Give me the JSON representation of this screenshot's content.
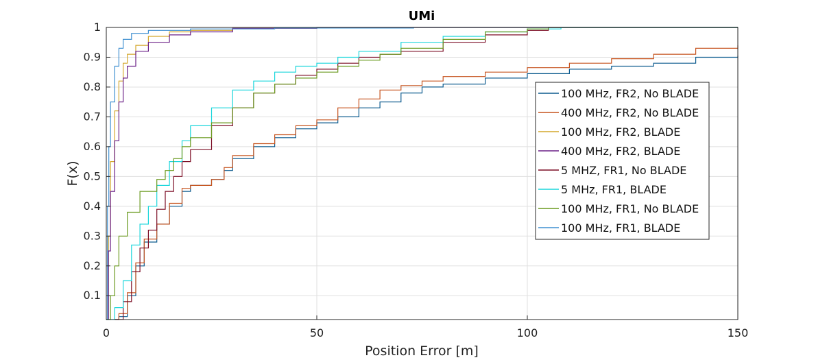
{
  "chart_data": {
    "type": "line",
    "title": "UMi",
    "xlabel": "Position Error [m]",
    "ylabel": "F(x)",
    "xlim": [
      0,
      150
    ],
    "ylim": [
      0.02,
      1
    ],
    "xticks": [
      0,
      50,
      100,
      150
    ],
    "yticks": [
      0.1,
      0.2,
      0.3,
      0.4,
      0.5,
      0.6,
      0.7,
      0.8,
      0.9,
      1
    ],
    "grid": true,
    "legend_position": "right",
    "series": [
      {
        "name": "100 MHz, FR2, No BLADE",
        "color": "#0b5a8e",
        "points": [
          [
            2,
            0.02
          ],
          [
            3,
            0.03
          ],
          [
            5,
            0.1
          ],
          [
            7,
            0.2
          ],
          [
            9,
            0.28
          ],
          [
            12,
            0.34
          ],
          [
            15,
            0.4
          ],
          [
            18,
            0.45
          ],
          [
            20,
            0.47
          ],
          [
            25,
            0.49
          ],
          [
            28,
            0.52
          ],
          [
            30,
            0.56
          ],
          [
            35,
            0.6
          ],
          [
            40,
            0.63
          ],
          [
            45,
            0.66
          ],
          [
            50,
            0.68
          ],
          [
            55,
            0.7
          ],
          [
            60,
            0.73
          ],
          [
            65,
            0.75
          ],
          [
            70,
            0.78
          ],
          [
            75,
            0.8
          ],
          [
            80,
            0.81
          ],
          [
            90,
            0.83
          ],
          [
            100,
            0.845
          ],
          [
            110,
            0.86
          ],
          [
            120,
            0.87
          ],
          [
            130,
            0.88
          ],
          [
            140,
            0.9
          ],
          [
            150,
            0.905
          ]
        ]
      },
      {
        "name": "400 MHz, FR2, No BLADE",
        "color": "#c6531e",
        "points": [
          [
            2,
            0.02
          ],
          [
            3,
            0.04
          ],
          [
            5,
            0.11
          ],
          [
            7,
            0.21
          ],
          [
            9,
            0.29
          ],
          [
            12,
            0.34
          ],
          [
            15,
            0.41
          ],
          [
            18,
            0.46
          ],
          [
            20,
            0.47
          ],
          [
            25,
            0.49
          ],
          [
            28,
            0.53
          ],
          [
            30,
            0.57
          ],
          [
            35,
            0.61
          ],
          [
            40,
            0.64
          ],
          [
            45,
            0.67
          ],
          [
            50,
            0.69
          ],
          [
            55,
            0.73
          ],
          [
            60,
            0.76
          ],
          [
            65,
            0.79
          ],
          [
            70,
            0.805
          ],
          [
            75,
            0.82
          ],
          [
            80,
            0.835
          ],
          [
            90,
            0.85
          ],
          [
            100,
            0.865
          ],
          [
            110,
            0.88
          ],
          [
            120,
            0.895
          ],
          [
            130,
            0.91
          ],
          [
            140,
            0.93
          ],
          [
            150,
            0.94
          ]
        ]
      },
      {
        "name": "100 MHz, FR2, BLADE",
        "color": "#d4a72c",
        "points": [
          [
            0,
            0.02
          ],
          [
            0.5,
            0.3
          ],
          [
            1,
            0.55
          ],
          [
            2,
            0.72
          ],
          [
            3,
            0.82
          ],
          [
            4,
            0.88
          ],
          [
            5,
            0.91
          ],
          [
            7,
            0.94
          ],
          [
            10,
            0.97
          ],
          [
            15,
            0.985
          ],
          [
            20,
            0.99
          ],
          [
            30,
            0.997
          ],
          [
            50,
            1
          ],
          [
            150,
            1
          ]
        ]
      },
      {
        "name": "400 MHz, FR2, BLADE",
        "color": "#6a1e86",
        "points": [
          [
            0,
            0.02
          ],
          [
            0.5,
            0.25
          ],
          [
            1,
            0.45
          ],
          [
            2,
            0.62
          ],
          [
            3,
            0.75
          ],
          [
            4,
            0.83
          ],
          [
            5,
            0.87
          ],
          [
            7,
            0.92
          ],
          [
            10,
            0.95
          ],
          [
            15,
            0.975
          ],
          [
            20,
            0.985
          ],
          [
            30,
            0.997
          ],
          [
            50,
            1
          ],
          [
            150,
            1
          ]
        ]
      },
      {
        "name": "5 MHZ, FR1, No BLADE",
        "color": "#7b0c24",
        "points": [
          [
            2,
            0.02
          ],
          [
            4,
            0.08
          ],
          [
            6,
            0.18
          ],
          [
            8,
            0.26
          ],
          [
            10,
            0.32
          ],
          [
            12,
            0.39
          ],
          [
            14,
            0.45
          ],
          [
            16,
            0.5
          ],
          [
            18,
            0.55
          ],
          [
            20,
            0.59
          ],
          [
            25,
            0.67
          ],
          [
            30,
            0.73
          ],
          [
            35,
            0.78
          ],
          [
            40,
            0.81
          ],
          [
            45,
            0.84
          ],
          [
            50,
            0.86
          ],
          [
            55,
            0.88
          ],
          [
            60,
            0.9
          ],
          [
            65,
            0.91
          ],
          [
            70,
            0.92
          ],
          [
            80,
            0.95
          ],
          [
            90,
            0.975
          ],
          [
            100,
            0.99
          ],
          [
            105,
            1
          ],
          [
            150,
            1
          ]
        ]
      },
      {
        "name": "5 MHz, FR1, BLADE",
        "color": "#1ad6db",
        "points": [
          [
            0,
            0.02
          ],
          [
            2,
            0.06
          ],
          [
            4,
            0.15
          ],
          [
            6,
            0.27
          ],
          [
            8,
            0.34
          ],
          [
            10,
            0.4
          ],
          [
            12,
            0.47
          ],
          [
            15,
            0.55
          ],
          [
            18,
            0.62
          ],
          [
            20,
            0.67
          ],
          [
            25,
            0.73
          ],
          [
            30,
            0.79
          ],
          [
            35,
            0.82
          ],
          [
            40,
            0.85
          ],
          [
            45,
            0.87
          ],
          [
            50,
            0.88
          ],
          [
            55,
            0.9
          ],
          [
            60,
            0.92
          ],
          [
            70,
            0.95
          ],
          [
            80,
            0.97
          ],
          [
            90,
            0.985
          ],
          [
            100,
            0.995
          ],
          [
            108,
            1
          ],
          [
            150,
            1
          ]
        ]
      },
      {
        "name": "100 MHz, FR1, No BLADE",
        "color": "#6a9a1f",
        "points": [
          [
            0,
            0.02
          ],
          [
            1,
            0.1
          ],
          [
            2,
            0.2
          ],
          [
            3,
            0.3
          ],
          [
            5,
            0.38
          ],
          [
            8,
            0.45
          ],
          [
            12,
            0.49
          ],
          [
            14,
            0.52
          ],
          [
            16,
            0.56
          ],
          [
            18,
            0.6
          ],
          [
            20,
            0.63
          ],
          [
            25,
            0.68
          ],
          [
            30,
            0.73
          ],
          [
            35,
            0.78
          ],
          [
            40,
            0.81
          ],
          [
            45,
            0.83
          ],
          [
            50,
            0.85
          ],
          [
            55,
            0.87
          ],
          [
            60,
            0.89
          ],
          [
            65,
            0.91
          ],
          [
            70,
            0.93
          ],
          [
            80,
            0.96
          ],
          [
            90,
            0.985
          ],
          [
            100,
            0.995
          ],
          [
            105,
            1
          ],
          [
            150,
            1
          ]
        ]
      },
      {
        "name": "100 MHz, FR1, BLADE",
        "color": "#3e8fd0",
        "points": [
          [
            0,
            0.02
          ],
          [
            0.3,
            0.4
          ],
          [
            0.6,
            0.6
          ],
          [
            1,
            0.75
          ],
          [
            2,
            0.87
          ],
          [
            3,
            0.93
          ],
          [
            4,
            0.96
          ],
          [
            6,
            0.98
          ],
          [
            10,
            0.99
          ],
          [
            20,
            0.995
          ],
          [
            40,
            0.998
          ],
          [
            73,
            1
          ],
          [
            150,
            1
          ]
        ]
      }
    ]
  }
}
